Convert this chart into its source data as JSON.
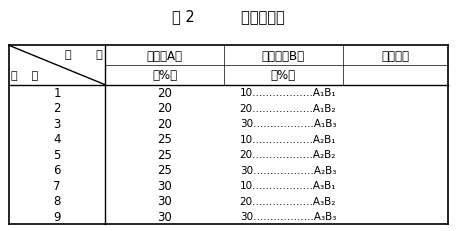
{
  "title": "表 2          正交试验表",
  "header_row1": [
    "蜂胶（A）",
    "中草药（B）",
    "水平组合"
  ],
  "header_row2": [
    "（%）",
    "（%）",
    ""
  ],
  "rows": [
    [
      "1",
      "20",
      "10",
      "A₁B₁"
    ],
    [
      "2",
      "20",
      "20",
      "A₁B₂"
    ],
    [
      "3",
      "20",
      "30",
      "A₁B₃"
    ],
    [
      "4",
      "25",
      "10",
      "A₂B₁"
    ],
    [
      "5",
      "25",
      "20",
      "A₂B₂"
    ],
    [
      "6",
      "25",
      "30",
      "A₂B₃"
    ],
    [
      "7",
      "30",
      "10",
      "A₃B₁"
    ],
    [
      "8",
      "30",
      "20",
      "A₃B₂"
    ],
    [
      "9",
      "30",
      "30",
      "A₃B₃"
    ]
  ],
  "bg_color": "#ffffff",
  "text_color": "#000000",
  "font_size": 8.5,
  "title_font_size": 10.5
}
